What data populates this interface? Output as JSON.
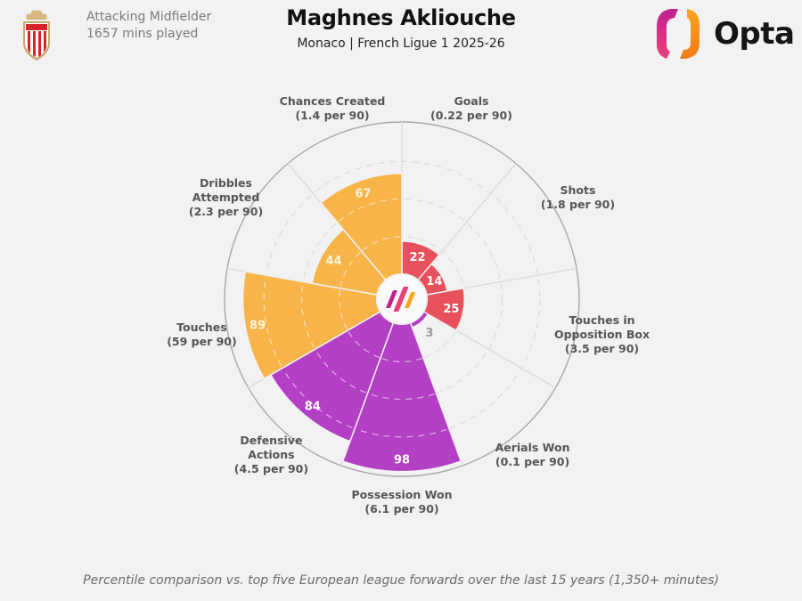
{
  "header": {
    "position": "Attacking Midfielder",
    "minutes": "1657 mins played",
    "player_name": "Maghnes Akliouche",
    "subtitle": "Monaco | French Ligue 1 2025-26",
    "brand": "Opta"
  },
  "footer": {
    "note": "Percentile comparison vs. top five European league forwards over the last 15 years (1,350+ minutes)"
  },
  "colors": {
    "background": "#f2f2f2",
    "attacking": "#e8505b",
    "possession": "#f6b449",
    "defending": "#b23fc4",
    "grid": "#d9d9d9",
    "outer_ring": "#a8a8a8"
  },
  "chart_data": {
    "type": "polar_bar",
    "title": "Maghnes Akliouche",
    "subtitle": "Monaco | French Ligue 1 2025-26",
    "scale": "percentile",
    "rlim": [
      0,
      100
    ],
    "grid_rings": [
      25,
      50,
      75
    ],
    "grid": true,
    "categories": [
      {
        "name": "Goals",
        "label_lines": [
          "Goals",
          "(0.22 per 90)"
        ],
        "per90": 0.22,
        "percentile": 22,
        "group": "attacking"
      },
      {
        "name": "Shots",
        "label_lines": [
          "Shots",
          "(1.8 per 90)"
        ],
        "per90": 1.8,
        "percentile": 14,
        "group": "attacking"
      },
      {
        "name": "Touches in Opposition Box",
        "label_lines": [
          "Touches in",
          "Opposition Box",
          "(3.5 per 90)"
        ],
        "per90": 3.5,
        "percentile": 25,
        "group": "attacking"
      },
      {
        "name": "Aerials Won",
        "label_lines": [
          "Aerials Won",
          "(0.1 per 90)"
        ],
        "per90": 0.1,
        "percentile": 3,
        "group": "defending"
      },
      {
        "name": "Possession Won",
        "label_lines": [
          "Possession Won",
          "(6.1 per 90)"
        ],
        "per90": 6.1,
        "percentile": 98,
        "group": "defending"
      },
      {
        "name": "Defensive Actions",
        "label_lines": [
          "Defensive",
          "Actions",
          "(4.5 per 90)"
        ],
        "per90": 4.5,
        "percentile": 84,
        "group": "defending"
      },
      {
        "name": "Touches",
        "label_lines": [
          "Touches",
          "(59 per 90)"
        ],
        "per90": 59,
        "percentile": 89,
        "group": "possession"
      },
      {
        "name": "Dribbles Attempted",
        "label_lines": [
          "Dribbles",
          "Attempted",
          "(2.3 per 90)"
        ],
        "per90": 2.3,
        "percentile": 44,
        "group": "possession"
      },
      {
        "name": "Chances Created",
        "label_lines": [
          "Chances Created",
          "(1.4 per 90)"
        ],
        "per90": 1.4,
        "percentile": 67,
        "group": "possession"
      }
    ],
    "footnote": "Percentile comparison vs. top five European league forwards over the last 15 years (1,350+ minutes)"
  }
}
